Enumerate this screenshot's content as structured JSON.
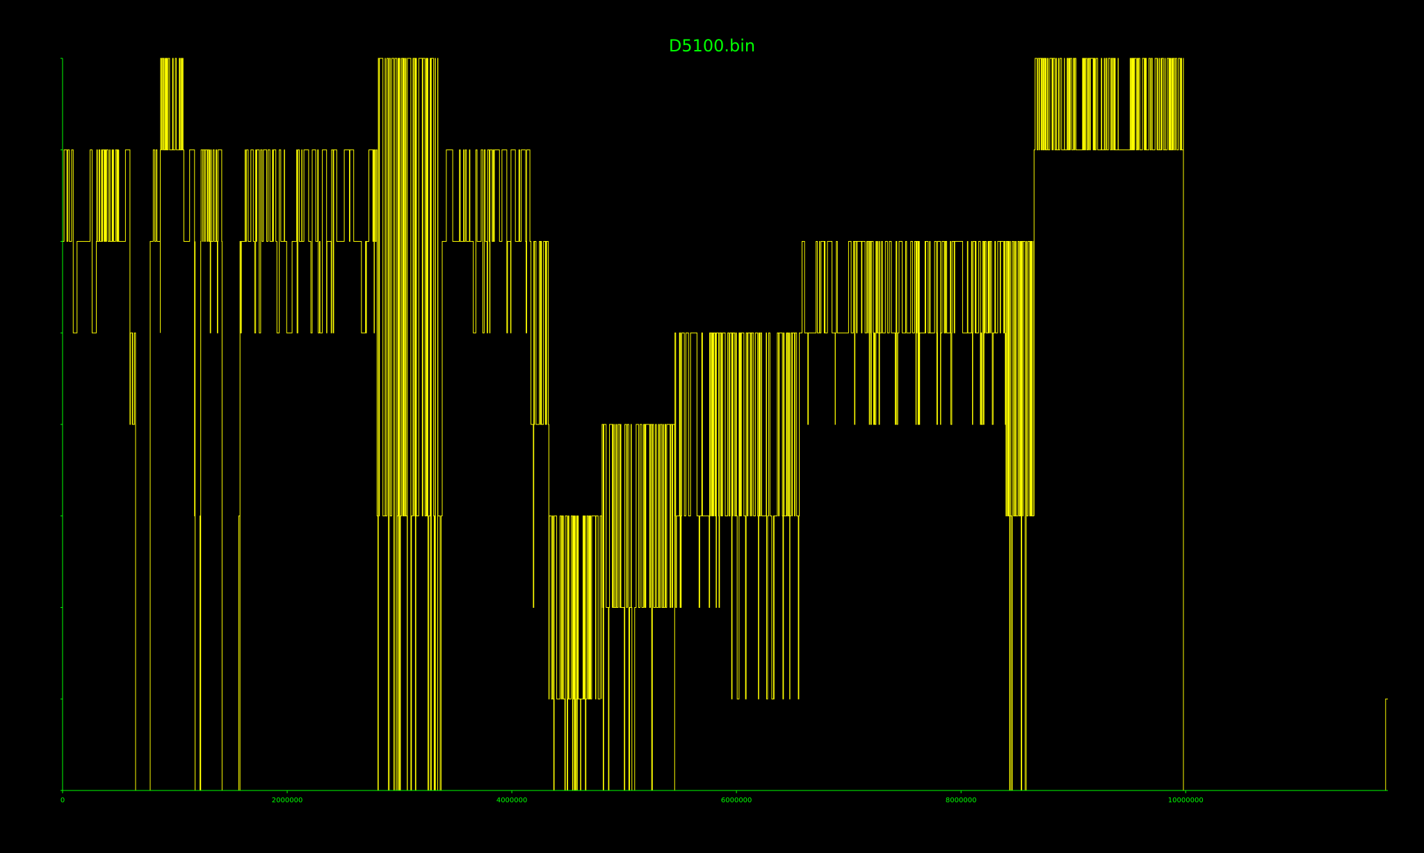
{
  "chart_data": {
    "type": "line",
    "title": "D5100.bin",
    "xlabel": "",
    "ylabel": "",
    "xlim": [
      0,
      11800000
    ],
    "ylim": [
      0,
      8
    ],
    "x_ticks": [
      0,
      2000000,
      4000000,
      6000000,
      8000000,
      10000000
    ],
    "x_tick_labels": [
      "0",
      "2000000",
      "4000000",
      "6000000",
      "8000000",
      "10000000"
    ],
    "y_ticks": [
      0,
      1,
      2,
      3,
      4,
      5,
      6,
      7,
      8
    ],
    "grid": false,
    "legend": "none",
    "colors": {
      "background": "#000000",
      "axis": "#00ff00",
      "line": "#ffff00",
      "title": "#00ff00"
    },
    "series": [
      {
        "segments": [
          {
            "x0": 0,
            "x1": 60000,
            "base": 6,
            "low": 3,
            "high": 7,
            "density": 0.3
          },
          {
            "x0": 60000,
            "x1": 300000,
            "base": 6,
            "low": 5,
            "high": 7,
            "density": 0.12
          },
          {
            "x0": 300000,
            "x1": 500000,
            "base": 6,
            "low": 6,
            "high": 7,
            "density": 0.85
          },
          {
            "x0": 500000,
            "x1": 600000,
            "base": 6,
            "low": 5,
            "high": 7,
            "density": 0.2
          },
          {
            "x0": 600000,
            "x1": 650000,
            "base": 4,
            "low": 4,
            "high": 5,
            "density": 0.9
          },
          {
            "x0": 650000,
            "x1": 780000,
            "base": 0,
            "low": 0,
            "high": 1,
            "density": 0.03
          },
          {
            "x0": 780000,
            "x1": 870000,
            "base": 6,
            "low": 5,
            "high": 7,
            "density": 0.4
          },
          {
            "x0": 870000,
            "x1": 1080000,
            "base": 7,
            "low": 7,
            "high": 8,
            "density": 0.95
          },
          {
            "x0": 1080000,
            "x1": 1180000,
            "base": 6,
            "low": 3,
            "high": 7,
            "density": 0.1
          },
          {
            "x0": 1180000,
            "x1": 1230000,
            "base": 0,
            "low": 0,
            "high": 3,
            "density": 0.3
          },
          {
            "x0": 1230000,
            "x1": 1420000,
            "base": 6,
            "low": 5,
            "high": 7,
            "density": 0.5
          },
          {
            "x0": 1420000,
            "x1": 1580000,
            "base": 0,
            "low": 0,
            "high": 3,
            "density": 0.05
          },
          {
            "x0": 1580000,
            "x1": 2800000,
            "base": 6,
            "low": 5,
            "high": 7,
            "density": 0.35
          },
          {
            "x0": 2800000,
            "x1": 3380000,
            "base": 3,
            "low": 0,
            "high": 8,
            "density": 0.8
          },
          {
            "x0": 3380000,
            "x1": 4170000,
            "base": 6,
            "low": 5,
            "high": 7,
            "density": 0.35
          },
          {
            "x0": 4170000,
            "x1": 4330000,
            "base": 4,
            "low": 2,
            "high": 6,
            "density": 0.6
          },
          {
            "x0": 4330000,
            "x1": 4800000,
            "base": 1,
            "low": 0,
            "high": 3,
            "density": 0.9
          },
          {
            "x0": 4800000,
            "x1": 5450000,
            "base": 2,
            "low": 0,
            "high": 4,
            "density": 0.7
          },
          {
            "x0": 5450000,
            "x1": 5900000,
            "base": 3,
            "low": 2,
            "high": 5,
            "density": 0.75
          },
          {
            "x0": 5900000,
            "x1": 6560000,
            "base": 3,
            "low": 1,
            "high": 5,
            "density": 0.65
          },
          {
            "x0": 6560000,
            "x1": 7150000,
            "base": 5,
            "low": 4,
            "high": 6,
            "density": 0.45
          },
          {
            "x0": 7150000,
            "x1": 7300000,
            "base": 5,
            "low": 4,
            "high": 6,
            "density": 0.9
          },
          {
            "x0": 7300000,
            "x1": 8400000,
            "base": 5,
            "low": 4,
            "high": 6,
            "density": 0.5
          },
          {
            "x0": 8400000,
            "x1": 8650000,
            "base": 3,
            "low": 0,
            "high": 6,
            "density": 0.8
          },
          {
            "x0": 8650000,
            "x1": 9400000,
            "base": 7,
            "low": 7,
            "high": 8,
            "density": 0.9
          },
          {
            "x0": 9400000,
            "x1": 9500000,
            "base": 7,
            "low": 0,
            "high": 8,
            "density": 0.1
          },
          {
            "x0": 9500000,
            "x1": 9980000,
            "base": 7,
            "low": 7,
            "high": 8,
            "density": 0.85
          },
          {
            "x0": 9980000,
            "x1": 11780000,
            "base": 0,
            "low": 0,
            "high": 0,
            "density": 0.0
          },
          {
            "x0": 11780000,
            "x1": 11800000,
            "base": 1,
            "low": 1,
            "high": 1,
            "density": 0.0
          }
        ]
      }
    ]
  }
}
